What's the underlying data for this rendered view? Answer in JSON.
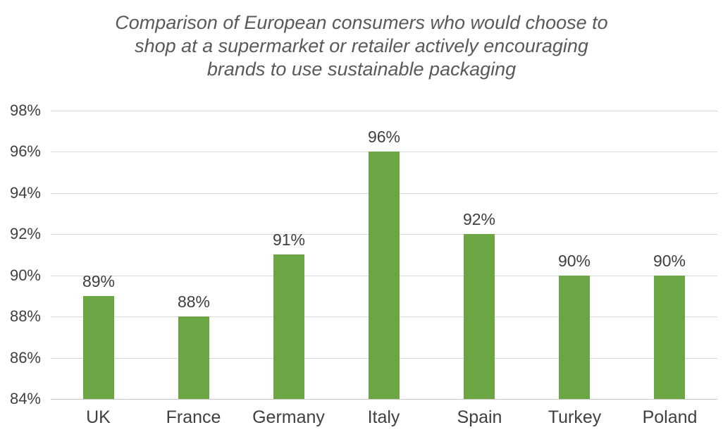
{
  "chart_data": {
    "type": "bar",
    "title": "Comparison of European consumers who would choose to shop at a supermarket or retailer actively encouraging brands to use sustainable packaging",
    "title_lines": [
      "Comparison of European consumers who would choose to",
      "shop at a supermarket or retailer actively encouraging",
      "brands to use sustainable packaging"
    ],
    "categories": [
      "UK",
      "France",
      "Germany",
      "Italy",
      "Spain",
      "Turkey",
      "Poland"
    ],
    "values": [
      89,
      88,
      91,
      96,
      92,
      90,
      90
    ],
    "value_labels": [
      "89%",
      "88%",
      "91%",
      "96%",
      "92%",
      "90%",
      "90%"
    ],
    "y_tick_labels": [
      "98%",
      "96%",
      "94%",
      "92%",
      "90%",
      "88%",
      "86%",
      "84%"
    ],
    "y_tick_values": [
      98,
      96,
      94,
      92,
      90,
      88,
      86,
      84
    ],
    "ylim": [
      84,
      98
    ],
    "y_tick_step": 2,
    "xlabel": "",
    "ylabel": "",
    "grid": true,
    "legend": "none"
  },
  "colors": {
    "bar": "#6CA544",
    "gridline": "#D9D9D9",
    "axis_line": "#C6C6C6",
    "title_text": "#595959",
    "tick_text": "#404040",
    "value_label_text": "#3F3F3F",
    "background": "#FFFFFF"
  }
}
